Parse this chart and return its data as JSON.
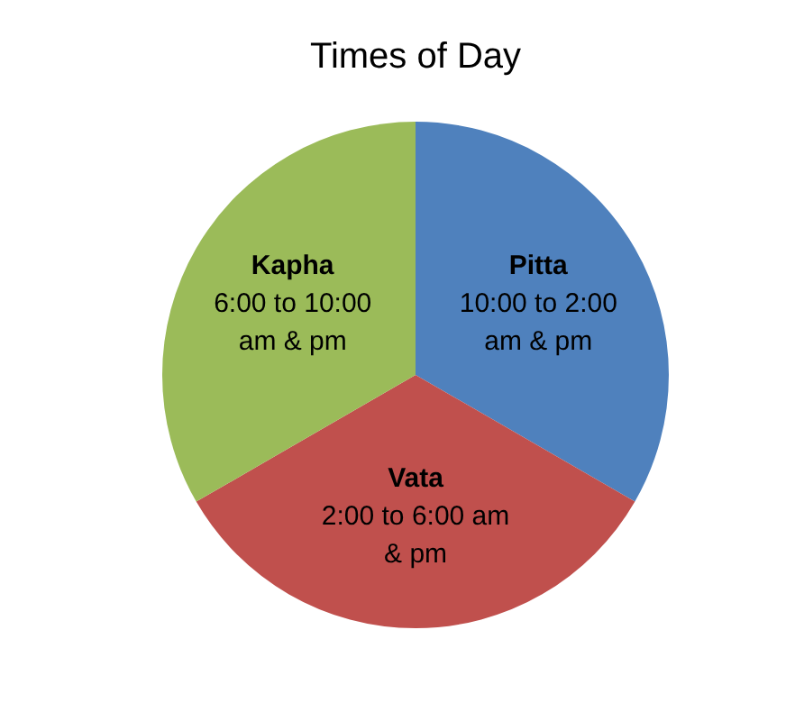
{
  "chart_data": {
    "type": "pie",
    "title": "Times of Day",
    "categories": [
      "Pitta",
      "Vata",
      "Kapha"
    ],
    "values": [
      33.33,
      33.33,
      33.34
    ],
    "colors": [
      "#4f81bd",
      "#c0504d",
      "#9bbb59"
    ],
    "annotations": [
      "10:00 to 2:00 am & pm",
      "2:00 to 6:00 am & pm",
      "6:00 to 10:00 am & pm"
    ],
    "legend": false
  }
}
